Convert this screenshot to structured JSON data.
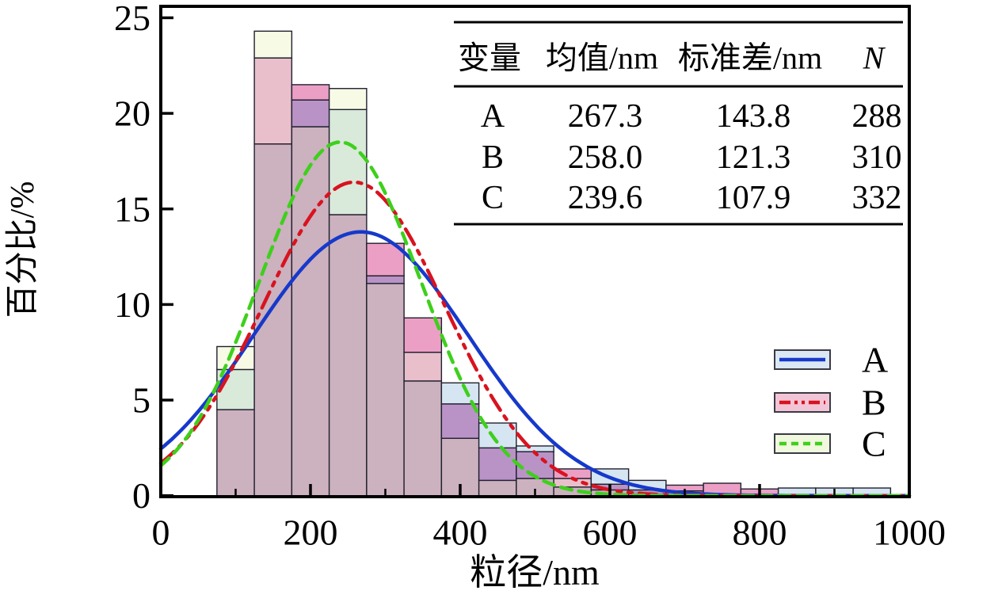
{
  "chart_data": {
    "type": "histogram-with-fit-curves",
    "title": "",
    "xlabel": "粒径/nm",
    "ylabel": "百分比/%",
    "xlim": [
      0,
      1000
    ],
    "ylim": [
      0,
      25.6
    ],
    "x_major_ticks": [
      0,
      200,
      400,
      600,
      800,
      1000
    ],
    "x_minor_ticks": [
      100,
      300,
      500,
      700,
      900
    ],
    "y_major_ticks": [
      0,
      5,
      10,
      15,
      20,
      25
    ],
    "grid": false,
    "bin_width_nm": 50,
    "bin_starts_nm": [
      75,
      125,
      175,
      225,
      275,
      325,
      375,
      425,
      475,
      525,
      575,
      625,
      675,
      725,
      775,
      825,
      875,
      925
    ],
    "series": [
      {
        "name": "A",
        "mean_nm": "267.3",
        "std_nm": "143.8",
        "N": "288",
        "curve_peak_pct": 13.8,
        "curve_color": "#1639cb",
        "curve_style": "solid",
        "bar_fill": "#d6e5f2",
        "legend_fill": "#dbe7f3",
        "values_pct": [
          6.6,
          18.4,
          20.7,
          20.2,
          11.5,
          6.0,
          5.9,
          3.8,
          2.6,
          0.45,
          1.4,
          0.8,
          0.25,
          0,
          0,
          0.4,
          0.4,
          0.4
        ]
      },
      {
        "name": "B",
        "mean_nm": "258.0",
        "std_nm": "121.3",
        "N": "310",
        "curve_peak_pct": 16.4,
        "curve_color": "#d8131f",
        "curve_style": "dash-dot-dot",
        "bar_fill": "#ec9fc5",
        "legend_fill": "#f2c5d6",
        "values_pct": [
          4.5,
          22.9,
          21.5,
          14.7,
          13.2,
          9.3,
          4.8,
          2.5,
          2.3,
          1.4,
          0.6,
          0.3,
          0.55,
          0.65,
          0.35,
          0,
          0,
          0
        ]
      },
      {
        "name": "C",
        "mean_nm": "239.6",
        "std_nm": "107.9",
        "N": "332",
        "curve_peak_pct": 18.5,
        "curve_color": "#3ed01c",
        "curve_style": "dashed",
        "bar_fill": "#f7fbe6",
        "legend_fill": "#f0f8dd",
        "values_pct": [
          7.8,
          24.3,
          19.3,
          21.3,
          11.1,
          7.5,
          3.0,
          0.8,
          0.9,
          0.9,
          0.3,
          0,
          0,
          0,
          0,
          0,
          0,
          0
        ]
      }
    ],
    "overlap_fill_colors": {
      "AB": "#b993c6",
      "AC": "#d9e9da",
      "BC": "#e9bfcb",
      "ABC": "#ccb1bf"
    },
    "bar_outline_color": "#20202e",
    "legend": {
      "position": "right-middle",
      "entries": [
        "A",
        "B",
        "C"
      ]
    },
    "inset_table": {
      "headers": [
        "变量",
        "均值/nm",
        "标准差/nm",
        "N"
      ],
      "rows": [
        [
          "A",
          "267.3",
          "143.8",
          "288"
        ],
        [
          "B",
          "258.0",
          "121.3",
          "310"
        ],
        [
          "C",
          "239.6",
          "107.9",
          "332"
        ]
      ]
    }
  }
}
